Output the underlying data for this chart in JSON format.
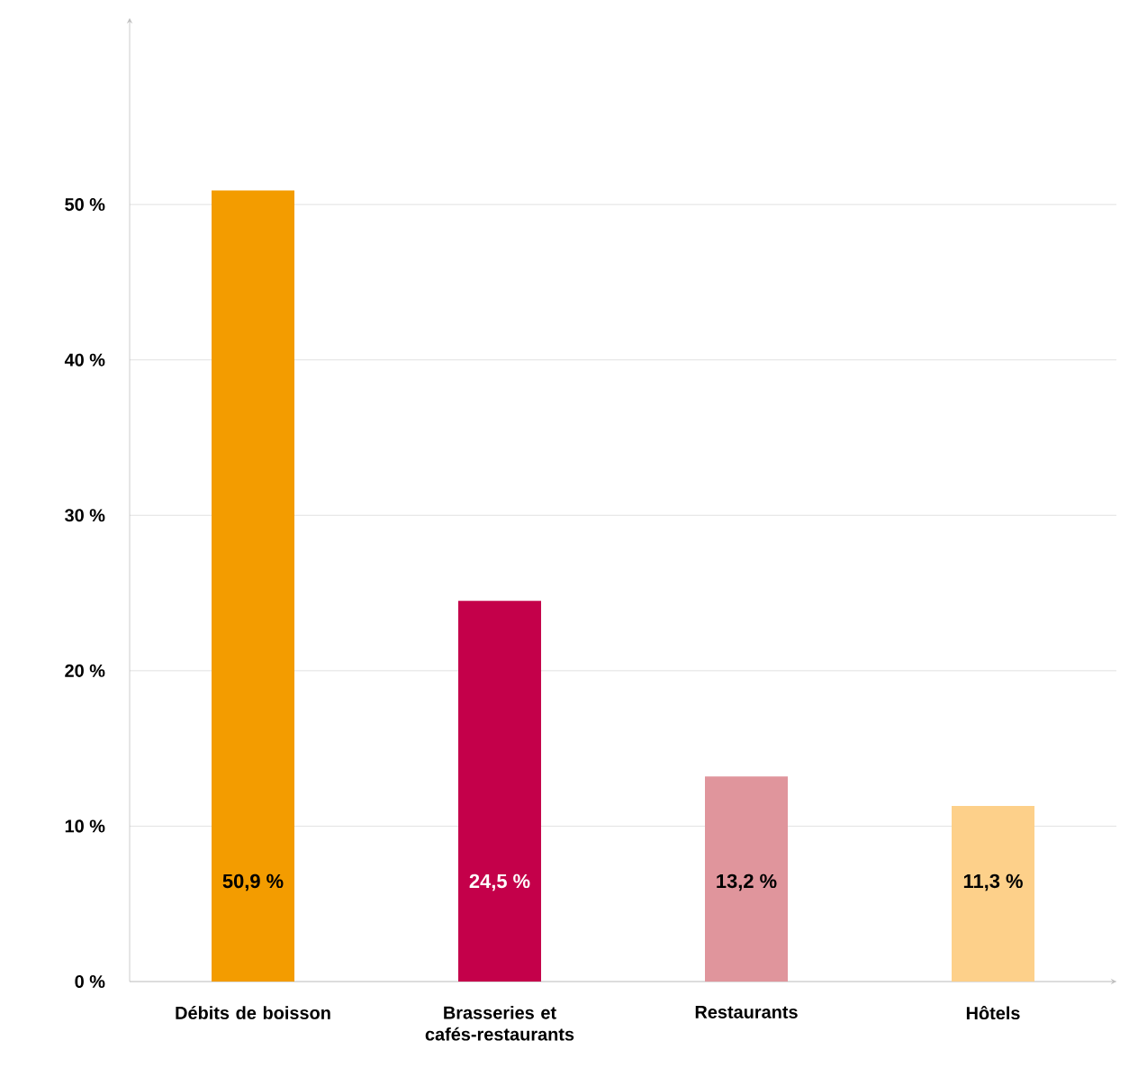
{
  "chart_data": {
    "type": "bar",
    "categories": [
      "Débits de boisson",
      "Brasseries et cafés-restaurants",
      "Restaurants",
      "Hôtels"
    ],
    "values": [
      50.9,
      24.5,
      13.2,
      11.3
    ],
    "colors": [
      "#f39c00",
      "#c4004a",
      "#e0959c",
      "#fdd08a"
    ],
    "value_labels": [
      "50,9 %",
      "24,5 %",
      "13,2 %",
      "11,3 %"
    ],
    "ylim": [
      0,
      62
    ],
    "yticks": [
      {
        "value": 0,
        "label": "0 %"
      },
      {
        "value": 10,
        "label": "10 %"
      },
      {
        "value": 20,
        "label": "20 %"
      },
      {
        "value": 30,
        "label": "30 %"
      },
      {
        "value": 40,
        "label": "40 %"
      },
      {
        "value": 50,
        "label": "50 %"
      }
    ],
    "grid": "y"
  }
}
